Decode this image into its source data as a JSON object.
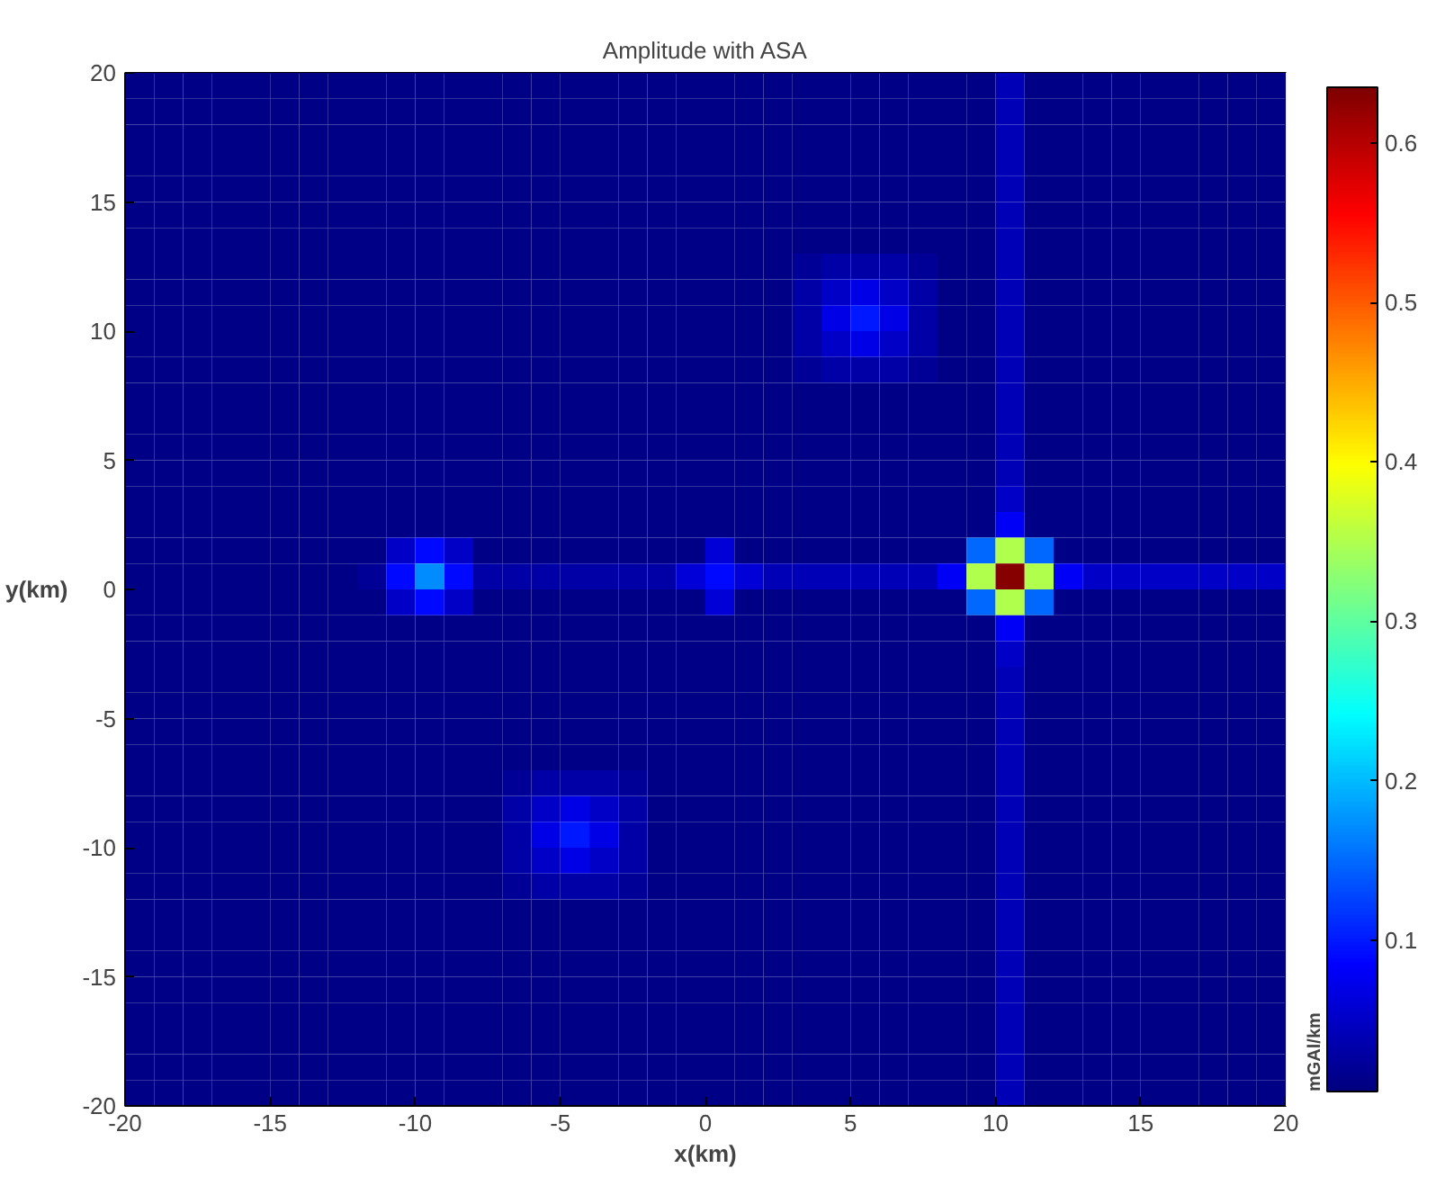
{
  "chart_data": {
    "type": "heatmap",
    "title": "Amplitude with ASA",
    "xlabel": "x(km)",
    "ylabel": "y(km)",
    "clabel": "mGAl/km",
    "x": [
      -19.5,
      -18.5,
      -17.5,
      -16.5,
      -15.5,
      -14.5,
      -13.5,
      -12.5,
      -11.5,
      -10.5,
      -9.5,
      -8.5,
      -7.5,
      -6.5,
      -5.5,
      -4.5,
      -3.5,
      -2.5,
      -1.5,
      -0.5,
      0.5,
      1.5,
      2.5,
      3.5,
      4.5,
      5.5,
      6.5,
      7.5,
      8.5,
      9.5,
      10.5,
      11.5,
      12.5,
      13.5,
      14.5,
      15.5,
      16.5,
      17.5,
      18.5,
      19.5
    ],
    "y": [
      19.5,
      18.5,
      17.5,
      16.5,
      15.5,
      14.5,
      13.5,
      12.5,
      11.5,
      10.5,
      9.5,
      8.5,
      7.5,
      6.5,
      5.5,
      4.5,
      3.5,
      2.5,
      1.5,
      0.5,
      -0.5,
      -1.5,
      -2.5,
      -3.5,
      -4.5,
      -5.5,
      -6.5,
      -7.5,
      -8.5,
      -9.5,
      -10.5,
      -11.5,
      -12.5,
      -13.5,
      -14.5,
      -15.5,
      -16.5,
      -17.5,
      -18.5,
      -19.5
    ],
    "cells": [
      [
        0.01,
        0.01,
        0.01,
        0.01,
        0.01,
        0.01,
        0.01,
        0.01,
        0.01,
        0.01,
        0.01,
        0.01,
        0.01,
        0.01,
        0.01,
        0.01,
        0.01,
        0.01,
        0.01,
        0.01,
        0.01,
        0.01,
        0.01,
        0.01,
        0.01,
        0.01,
        0.01,
        0.01,
        0.01,
        0.01,
        0.04,
        0.01,
        0.01,
        0.01,
        0.01,
        0.01,
        0.01,
        0.01,
        0.01,
        0.01
      ],
      [
        0.01,
        0.01,
        0.01,
        0.01,
        0.01,
        0.01,
        0.01,
        0.01,
        0.01,
        0.01,
        0.01,
        0.01,
        0.01,
        0.01,
        0.01,
        0.01,
        0.01,
        0.01,
        0.01,
        0.01,
        0.01,
        0.01,
        0.01,
        0.01,
        0.01,
        0.01,
        0.01,
        0.01,
        0.01,
        0.01,
        0.04,
        0.01,
        0.01,
        0.01,
        0.01,
        0.01,
        0.01,
        0.01,
        0.01,
        0.01
      ],
      [
        0.01,
        0.01,
        0.01,
        0.01,
        0.01,
        0.01,
        0.01,
        0.01,
        0.01,
        0.01,
        0.01,
        0.01,
        0.01,
        0.01,
        0.01,
        0.01,
        0.01,
        0.01,
        0.01,
        0.01,
        0.01,
        0.01,
        0.01,
        0.01,
        0.01,
        0.01,
        0.01,
        0.01,
        0.01,
        0.01,
        0.04,
        0.01,
        0.01,
        0.01,
        0.01,
        0.01,
        0.01,
        0.01,
        0.01,
        0.01
      ],
      [
        0.01,
        0.01,
        0.01,
        0.01,
        0.01,
        0.01,
        0.01,
        0.01,
        0.01,
        0.01,
        0.01,
        0.01,
        0.01,
        0.01,
        0.01,
        0.01,
        0.01,
        0.01,
        0.01,
        0.01,
        0.01,
        0.01,
        0.01,
        0.01,
        0.01,
        0.01,
        0.01,
        0.01,
        0.01,
        0.01,
        0.04,
        0.01,
        0.01,
        0.01,
        0.01,
        0.01,
        0.01,
        0.01,
        0.01,
        0.01
      ],
      [
        0.01,
        0.01,
        0.01,
        0.01,
        0.01,
        0.01,
        0.01,
        0.01,
        0.01,
        0.01,
        0.01,
        0.01,
        0.01,
        0.01,
        0.01,
        0.01,
        0.01,
        0.01,
        0.01,
        0.01,
        0.01,
        0.01,
        0.01,
        0.01,
        0.01,
        0.01,
        0.01,
        0.01,
        0.01,
        0.01,
        0.04,
        0.01,
        0.01,
        0.01,
        0.01,
        0.01,
        0.01,
        0.01,
        0.01,
        0.01
      ],
      [
        0.01,
        0.01,
        0.01,
        0.01,
        0.01,
        0.01,
        0.01,
        0.01,
        0.01,
        0.01,
        0.01,
        0.01,
        0.01,
        0.01,
        0.01,
        0.01,
        0.01,
        0.01,
        0.01,
        0.01,
        0.01,
        0.01,
        0.01,
        0.01,
        0.01,
        0.01,
        0.01,
        0.01,
        0.01,
        0.01,
        0.04,
        0.01,
        0.01,
        0.01,
        0.01,
        0.01,
        0.01,
        0.01,
        0.01,
        0.01
      ],
      [
        0.01,
        0.01,
        0.01,
        0.01,
        0.01,
        0.01,
        0.01,
        0.01,
        0.01,
        0.01,
        0.01,
        0.01,
        0.01,
        0.01,
        0.01,
        0.01,
        0.01,
        0.01,
        0.01,
        0.01,
        0.01,
        0.01,
        0.01,
        0.01,
        0.01,
        0.01,
        0.01,
        0.01,
        0.01,
        0.01,
        0.04,
        0.01,
        0.01,
        0.01,
        0.01,
        0.01,
        0.01,
        0.01,
        0.01,
        0.01
      ],
      [
        0.01,
        0.01,
        0.01,
        0.01,
        0.01,
        0.01,
        0.01,
        0.01,
        0.01,
        0.01,
        0.01,
        0.01,
        0.01,
        0.01,
        0.01,
        0.01,
        0.01,
        0.01,
        0.01,
        0.01,
        0.01,
        0.01,
        0.01,
        0.02,
        0.03,
        0.03,
        0.03,
        0.02,
        0.01,
        0.01,
        0.04,
        0.01,
        0.01,
        0.01,
        0.01,
        0.01,
        0.01,
        0.01,
        0.01,
        0.01
      ],
      [
        0.01,
        0.01,
        0.01,
        0.01,
        0.01,
        0.01,
        0.01,
        0.01,
        0.01,
        0.01,
        0.01,
        0.01,
        0.01,
        0.01,
        0.01,
        0.01,
        0.01,
        0.01,
        0.01,
        0.01,
        0.01,
        0.01,
        0.01,
        0.03,
        0.05,
        0.07,
        0.05,
        0.03,
        0.01,
        0.01,
        0.04,
        0.01,
        0.01,
        0.01,
        0.01,
        0.01,
        0.01,
        0.01,
        0.01,
        0.01
      ],
      [
        0.01,
        0.01,
        0.01,
        0.01,
        0.01,
        0.01,
        0.01,
        0.01,
        0.01,
        0.01,
        0.01,
        0.01,
        0.01,
        0.01,
        0.01,
        0.01,
        0.01,
        0.01,
        0.01,
        0.01,
        0.01,
        0.01,
        0.01,
        0.03,
        0.07,
        0.1,
        0.07,
        0.03,
        0.01,
        0.01,
        0.04,
        0.01,
        0.01,
        0.01,
        0.01,
        0.01,
        0.01,
        0.01,
        0.01,
        0.01
      ],
      [
        0.01,
        0.01,
        0.01,
        0.01,
        0.01,
        0.01,
        0.01,
        0.01,
        0.01,
        0.01,
        0.01,
        0.01,
        0.01,
        0.01,
        0.01,
        0.01,
        0.01,
        0.01,
        0.01,
        0.01,
        0.01,
        0.01,
        0.01,
        0.03,
        0.05,
        0.07,
        0.05,
        0.03,
        0.01,
        0.01,
        0.04,
        0.01,
        0.01,
        0.01,
        0.01,
        0.01,
        0.01,
        0.01,
        0.01,
        0.01
      ],
      [
        0.01,
        0.01,
        0.01,
        0.01,
        0.01,
        0.01,
        0.01,
        0.01,
        0.01,
        0.01,
        0.01,
        0.01,
        0.01,
        0.01,
        0.01,
        0.01,
        0.01,
        0.01,
        0.01,
        0.01,
        0.01,
        0.01,
        0.01,
        0.02,
        0.03,
        0.03,
        0.03,
        0.02,
        0.01,
        0.01,
        0.04,
        0.01,
        0.01,
        0.01,
        0.01,
        0.01,
        0.01,
        0.01,
        0.01,
        0.01
      ],
      [
        0.01,
        0.01,
        0.01,
        0.01,
        0.01,
        0.01,
        0.01,
        0.01,
        0.01,
        0.01,
        0.01,
        0.01,
        0.01,
        0.01,
        0.01,
        0.01,
        0.01,
        0.01,
        0.01,
        0.01,
        0.01,
        0.01,
        0.01,
        0.01,
        0.01,
        0.01,
        0.01,
        0.01,
        0.01,
        0.01,
        0.04,
        0.01,
        0.01,
        0.01,
        0.01,
        0.01,
        0.01,
        0.01,
        0.01,
        0.01
      ],
      [
        0.01,
        0.01,
        0.01,
        0.01,
        0.01,
        0.01,
        0.01,
        0.01,
        0.01,
        0.01,
        0.01,
        0.01,
        0.01,
        0.01,
        0.01,
        0.01,
        0.01,
        0.01,
        0.01,
        0.01,
        0.01,
        0.01,
        0.01,
        0.01,
        0.01,
        0.01,
        0.01,
        0.01,
        0.01,
        0.01,
        0.04,
        0.01,
        0.01,
        0.01,
        0.01,
        0.01,
        0.01,
        0.01,
        0.01,
        0.01
      ],
      [
        0.01,
        0.01,
        0.01,
        0.01,
        0.01,
        0.01,
        0.01,
        0.01,
        0.01,
        0.01,
        0.01,
        0.01,
        0.01,
        0.01,
        0.01,
        0.01,
        0.01,
        0.01,
        0.01,
        0.01,
        0.01,
        0.01,
        0.01,
        0.01,
        0.01,
        0.01,
        0.01,
        0.01,
        0.01,
        0.01,
        0.04,
        0.01,
        0.01,
        0.01,
        0.01,
        0.01,
        0.01,
        0.01,
        0.01,
        0.01
      ],
      [
        0.01,
        0.01,
        0.01,
        0.01,
        0.01,
        0.01,
        0.01,
        0.01,
        0.01,
        0.01,
        0.01,
        0.01,
        0.01,
        0.01,
        0.01,
        0.01,
        0.01,
        0.01,
        0.01,
        0.01,
        0.01,
        0.01,
        0.01,
        0.01,
        0.01,
        0.01,
        0.01,
        0.01,
        0.01,
        0.01,
        0.04,
        0.01,
        0.01,
        0.01,
        0.01,
        0.01,
        0.01,
        0.01,
        0.01,
        0.01
      ],
      [
        0.01,
        0.01,
        0.01,
        0.01,
        0.01,
        0.01,
        0.01,
        0.01,
        0.01,
        0.01,
        0.01,
        0.01,
        0.01,
        0.01,
        0.01,
        0.01,
        0.01,
        0.01,
        0.01,
        0.01,
        0.01,
        0.01,
        0.01,
        0.01,
        0.01,
        0.01,
        0.01,
        0.01,
        0.01,
        0.01,
        0.05,
        0.01,
        0.01,
        0.01,
        0.01,
        0.01,
        0.01,
        0.01,
        0.01,
        0.01
      ],
      [
        0.01,
        0.01,
        0.01,
        0.01,
        0.01,
        0.01,
        0.01,
        0.01,
        0.01,
        0.01,
        0.01,
        0.01,
        0.01,
        0.01,
        0.01,
        0.01,
        0.01,
        0.01,
        0.01,
        0.01,
        0.01,
        0.01,
        0.01,
        0.01,
        0.01,
        0.01,
        0.01,
        0.01,
        0.01,
        0.01,
        0.08,
        0.01,
        0.01,
        0.01,
        0.01,
        0.01,
        0.01,
        0.01,
        0.01,
        0.01
      ],
      [
        0.01,
        0.01,
        0.01,
        0.01,
        0.01,
        0.01,
        0.01,
        0.01,
        0.01,
        0.05,
        0.09,
        0.05,
        0.01,
        0.01,
        0.01,
        0.01,
        0.01,
        0.01,
        0.01,
        0.01,
        0.06,
        0.01,
        0.01,
        0.01,
        0.01,
        0.01,
        0.01,
        0.01,
        0.01,
        0.15,
        0.35,
        0.15,
        0.01,
        0.01,
        0.01,
        0.01,
        0.01,
        0.01,
        0.01,
        0.01
      ],
      [
        0.01,
        0.01,
        0.01,
        0.01,
        0.01,
        0.01,
        0.01,
        0.01,
        0.02,
        0.09,
        0.17,
        0.09,
        0.03,
        0.03,
        0.03,
        0.03,
        0.03,
        0.03,
        0.03,
        0.06,
        0.09,
        0.06,
        0.04,
        0.04,
        0.04,
        0.04,
        0.04,
        0.04,
        0.08,
        0.35,
        0.63,
        0.35,
        0.08,
        0.05,
        0.05,
        0.05,
        0.05,
        0.05,
        0.05,
        0.05
      ],
      [
        0.01,
        0.01,
        0.01,
        0.01,
        0.01,
        0.01,
        0.01,
        0.01,
        0.01,
        0.05,
        0.09,
        0.05,
        0.01,
        0.01,
        0.01,
        0.01,
        0.01,
        0.01,
        0.01,
        0.01,
        0.06,
        0.01,
        0.01,
        0.01,
        0.01,
        0.01,
        0.01,
        0.01,
        0.01,
        0.15,
        0.35,
        0.15,
        0.01,
        0.01,
        0.01,
        0.01,
        0.01,
        0.01,
        0.01,
        0.01
      ],
      [
        0.01,
        0.01,
        0.01,
        0.01,
        0.01,
        0.01,
        0.01,
        0.01,
        0.01,
        0.01,
        0.01,
        0.01,
        0.01,
        0.01,
        0.01,
        0.01,
        0.01,
        0.01,
        0.01,
        0.01,
        0.01,
        0.01,
        0.01,
        0.01,
        0.01,
        0.01,
        0.01,
        0.01,
        0.01,
        0.01,
        0.08,
        0.01,
        0.01,
        0.01,
        0.01,
        0.01,
        0.01,
        0.01,
        0.01,
        0.01
      ],
      [
        0.01,
        0.01,
        0.01,
        0.01,
        0.01,
        0.01,
        0.01,
        0.01,
        0.01,
        0.01,
        0.01,
        0.01,
        0.01,
        0.01,
        0.01,
        0.01,
        0.01,
        0.01,
        0.01,
        0.01,
        0.01,
        0.01,
        0.01,
        0.01,
        0.01,
        0.01,
        0.01,
        0.01,
        0.01,
        0.01,
        0.05,
        0.01,
        0.01,
        0.01,
        0.01,
        0.01,
        0.01,
        0.01,
        0.01,
        0.01
      ],
      [
        0.01,
        0.01,
        0.01,
        0.01,
        0.01,
        0.01,
        0.01,
        0.01,
        0.01,
        0.01,
        0.01,
        0.01,
        0.01,
        0.01,
        0.01,
        0.01,
        0.01,
        0.01,
        0.01,
        0.01,
        0.01,
        0.01,
        0.01,
        0.01,
        0.01,
        0.01,
        0.01,
        0.01,
        0.01,
        0.01,
        0.04,
        0.01,
        0.01,
        0.01,
        0.01,
        0.01,
        0.01,
        0.01,
        0.01,
        0.01
      ],
      [
        0.01,
        0.01,
        0.01,
        0.01,
        0.01,
        0.01,
        0.01,
        0.01,
        0.01,
        0.01,
        0.01,
        0.01,
        0.01,
        0.01,
        0.01,
        0.01,
        0.01,
        0.01,
        0.01,
        0.01,
        0.01,
        0.01,
        0.01,
        0.01,
        0.01,
        0.01,
        0.01,
        0.01,
        0.01,
        0.01,
        0.04,
        0.01,
        0.01,
        0.01,
        0.01,
        0.01,
        0.01,
        0.01,
        0.01,
        0.01
      ],
      [
        0.01,
        0.01,
        0.01,
        0.01,
        0.01,
        0.01,
        0.01,
        0.01,
        0.01,
        0.01,
        0.01,
        0.01,
        0.01,
        0.01,
        0.01,
        0.01,
        0.01,
        0.01,
        0.01,
        0.01,
        0.01,
        0.01,
        0.01,
        0.01,
        0.01,
        0.01,
        0.01,
        0.01,
        0.01,
        0.01,
        0.04,
        0.01,
        0.01,
        0.01,
        0.01,
        0.01,
        0.01,
        0.01,
        0.01,
        0.01
      ],
      [
        0.01,
        0.01,
        0.01,
        0.01,
        0.01,
        0.01,
        0.01,
        0.01,
        0.01,
        0.01,
        0.01,
        0.01,
        0.01,
        0.01,
        0.01,
        0.01,
        0.01,
        0.01,
        0.01,
        0.01,
        0.01,
        0.01,
        0.01,
        0.01,
        0.01,
        0.01,
        0.01,
        0.01,
        0.01,
        0.01,
        0.04,
        0.01,
        0.01,
        0.01,
        0.01,
        0.01,
        0.01,
        0.01,
        0.01,
        0.01
      ],
      [
        0.01,
        0.01,
        0.01,
        0.01,
        0.01,
        0.01,
        0.01,
        0.01,
        0.01,
        0.01,
        0.01,
        0.01,
        0.01,
        0.02,
        0.03,
        0.03,
        0.03,
        0.02,
        0.01,
        0.01,
        0.01,
        0.01,
        0.01,
        0.01,
        0.01,
        0.01,
        0.01,
        0.01,
        0.01,
        0.01,
        0.04,
        0.01,
        0.01,
        0.01,
        0.01,
        0.01,
        0.01,
        0.01,
        0.01,
        0.01
      ],
      [
        0.01,
        0.01,
        0.01,
        0.01,
        0.01,
        0.01,
        0.01,
        0.01,
        0.01,
        0.01,
        0.01,
        0.01,
        0.01,
        0.03,
        0.05,
        0.07,
        0.05,
        0.03,
        0.01,
        0.01,
        0.01,
        0.01,
        0.01,
        0.01,
        0.01,
        0.01,
        0.01,
        0.01,
        0.01,
        0.01,
        0.04,
        0.01,
        0.01,
        0.01,
        0.01,
        0.01,
        0.01,
        0.01,
        0.01,
        0.01
      ],
      [
        0.01,
        0.01,
        0.01,
        0.01,
        0.01,
        0.01,
        0.01,
        0.01,
        0.01,
        0.01,
        0.01,
        0.01,
        0.01,
        0.03,
        0.07,
        0.1,
        0.07,
        0.03,
        0.01,
        0.01,
        0.01,
        0.01,
        0.01,
        0.01,
        0.01,
        0.01,
        0.01,
        0.01,
        0.01,
        0.01,
        0.04,
        0.01,
        0.01,
        0.01,
        0.01,
        0.01,
        0.01,
        0.01,
        0.01,
        0.01
      ],
      [
        0.01,
        0.01,
        0.01,
        0.01,
        0.01,
        0.01,
        0.01,
        0.01,
        0.01,
        0.01,
        0.01,
        0.01,
        0.01,
        0.03,
        0.05,
        0.07,
        0.05,
        0.03,
        0.01,
        0.01,
        0.01,
        0.01,
        0.01,
        0.01,
        0.01,
        0.01,
        0.01,
        0.01,
        0.01,
        0.01,
        0.04,
        0.01,
        0.01,
        0.01,
        0.01,
        0.01,
        0.01,
        0.01,
        0.01,
        0.01
      ],
      [
        0.01,
        0.01,
        0.01,
        0.01,
        0.01,
        0.01,
        0.01,
        0.01,
        0.01,
        0.01,
        0.01,
        0.01,
        0.01,
        0.02,
        0.03,
        0.03,
        0.03,
        0.02,
        0.01,
        0.01,
        0.01,
        0.01,
        0.01,
        0.01,
        0.01,
        0.01,
        0.01,
        0.01,
        0.01,
        0.01,
        0.04,
        0.01,
        0.01,
        0.01,
        0.01,
        0.01,
        0.01,
        0.01,
        0.01,
        0.01
      ],
      [
        0.01,
        0.01,
        0.01,
        0.01,
        0.01,
        0.01,
        0.01,
        0.01,
        0.01,
        0.01,
        0.01,
        0.01,
        0.01,
        0.01,
        0.01,
        0.01,
        0.01,
        0.01,
        0.01,
        0.01,
        0.01,
        0.01,
        0.01,
        0.01,
        0.01,
        0.01,
        0.01,
        0.01,
        0.01,
        0.01,
        0.04,
        0.01,
        0.01,
        0.01,
        0.01,
        0.01,
        0.01,
        0.01,
        0.01,
        0.01
      ],
      [
        0.01,
        0.01,
        0.01,
        0.01,
        0.01,
        0.01,
        0.01,
        0.01,
        0.01,
        0.01,
        0.01,
        0.01,
        0.01,
        0.01,
        0.01,
        0.01,
        0.01,
        0.01,
        0.01,
        0.01,
        0.01,
        0.01,
        0.01,
        0.01,
        0.01,
        0.01,
        0.01,
        0.01,
        0.01,
        0.01,
        0.04,
        0.01,
        0.01,
        0.01,
        0.01,
        0.01,
        0.01,
        0.01,
        0.01,
        0.01
      ],
      [
        0.01,
        0.01,
        0.01,
        0.01,
        0.01,
        0.01,
        0.01,
        0.01,
        0.01,
        0.01,
        0.01,
        0.01,
        0.01,
        0.01,
        0.01,
        0.01,
        0.01,
        0.01,
        0.01,
        0.01,
        0.01,
        0.01,
        0.01,
        0.01,
        0.01,
        0.01,
        0.01,
        0.01,
        0.01,
        0.01,
        0.04,
        0.01,
        0.01,
        0.01,
        0.01,
        0.01,
        0.01,
        0.01,
        0.01,
        0.01
      ],
      [
        0.01,
        0.01,
        0.01,
        0.01,
        0.01,
        0.01,
        0.01,
        0.01,
        0.01,
        0.01,
        0.01,
        0.01,
        0.01,
        0.01,
        0.01,
        0.01,
        0.01,
        0.01,
        0.01,
        0.01,
        0.01,
        0.01,
        0.01,
        0.01,
        0.01,
        0.01,
        0.01,
        0.01,
        0.01,
        0.01,
        0.04,
        0.01,
        0.01,
        0.01,
        0.01,
        0.01,
        0.01,
        0.01,
        0.01,
        0.01
      ],
      [
        0.01,
        0.01,
        0.01,
        0.01,
        0.01,
        0.01,
        0.01,
        0.01,
        0.01,
        0.01,
        0.01,
        0.01,
        0.01,
        0.01,
        0.01,
        0.01,
        0.01,
        0.01,
        0.01,
        0.01,
        0.01,
        0.01,
        0.01,
        0.01,
        0.01,
        0.01,
        0.01,
        0.01,
        0.01,
        0.01,
        0.04,
        0.01,
        0.01,
        0.01,
        0.01,
        0.01,
        0.01,
        0.01,
        0.01,
        0.01
      ],
      [
        0.01,
        0.01,
        0.01,
        0.01,
        0.01,
        0.01,
        0.01,
        0.01,
        0.01,
        0.01,
        0.01,
        0.01,
        0.01,
        0.01,
        0.01,
        0.01,
        0.01,
        0.01,
        0.01,
        0.01,
        0.01,
        0.01,
        0.01,
        0.01,
        0.01,
        0.01,
        0.01,
        0.01,
        0.01,
        0.01,
        0.04,
        0.01,
        0.01,
        0.01,
        0.01,
        0.01,
        0.01,
        0.01,
        0.01,
        0.01
      ],
      [
        0.01,
        0.01,
        0.01,
        0.01,
        0.01,
        0.01,
        0.01,
        0.01,
        0.01,
        0.01,
        0.01,
        0.01,
        0.01,
        0.01,
        0.01,
        0.01,
        0.01,
        0.01,
        0.01,
        0.01,
        0.01,
        0.01,
        0.01,
        0.01,
        0.01,
        0.01,
        0.01,
        0.01,
        0.01,
        0.01,
        0.04,
        0.01,
        0.01,
        0.01,
        0.01,
        0.01,
        0.01,
        0.01,
        0.01,
        0.01
      ],
      [
        0.01,
        0.01,
        0.01,
        0.01,
        0.01,
        0.01,
        0.01,
        0.01,
        0.01,
        0.01,
        0.01,
        0.01,
        0.01,
        0.01,
        0.01,
        0.01,
        0.01,
        0.01,
        0.01,
        0.01,
        0.01,
        0.01,
        0.01,
        0.01,
        0.01,
        0.01,
        0.01,
        0.01,
        0.01,
        0.01,
        0.04,
        0.01,
        0.01,
        0.01,
        0.01,
        0.01,
        0.01,
        0.01,
        0.01,
        0.01
      ]
    ],
    "xlim": [
      -20,
      20
    ],
    "ylim": [
      -20,
      20
    ],
    "xticks": [
      -20,
      -15,
      -10,
      -5,
      0,
      5,
      10,
      15,
      20
    ],
    "yticks": [
      -20,
      -15,
      -10,
      -5,
      0,
      5,
      10,
      15,
      20
    ],
    "clim": [
      0.005,
      0.635
    ],
    "cticks": [
      0.1,
      0.2,
      0.3,
      0.4,
      0.5,
      0.6
    ]
  }
}
